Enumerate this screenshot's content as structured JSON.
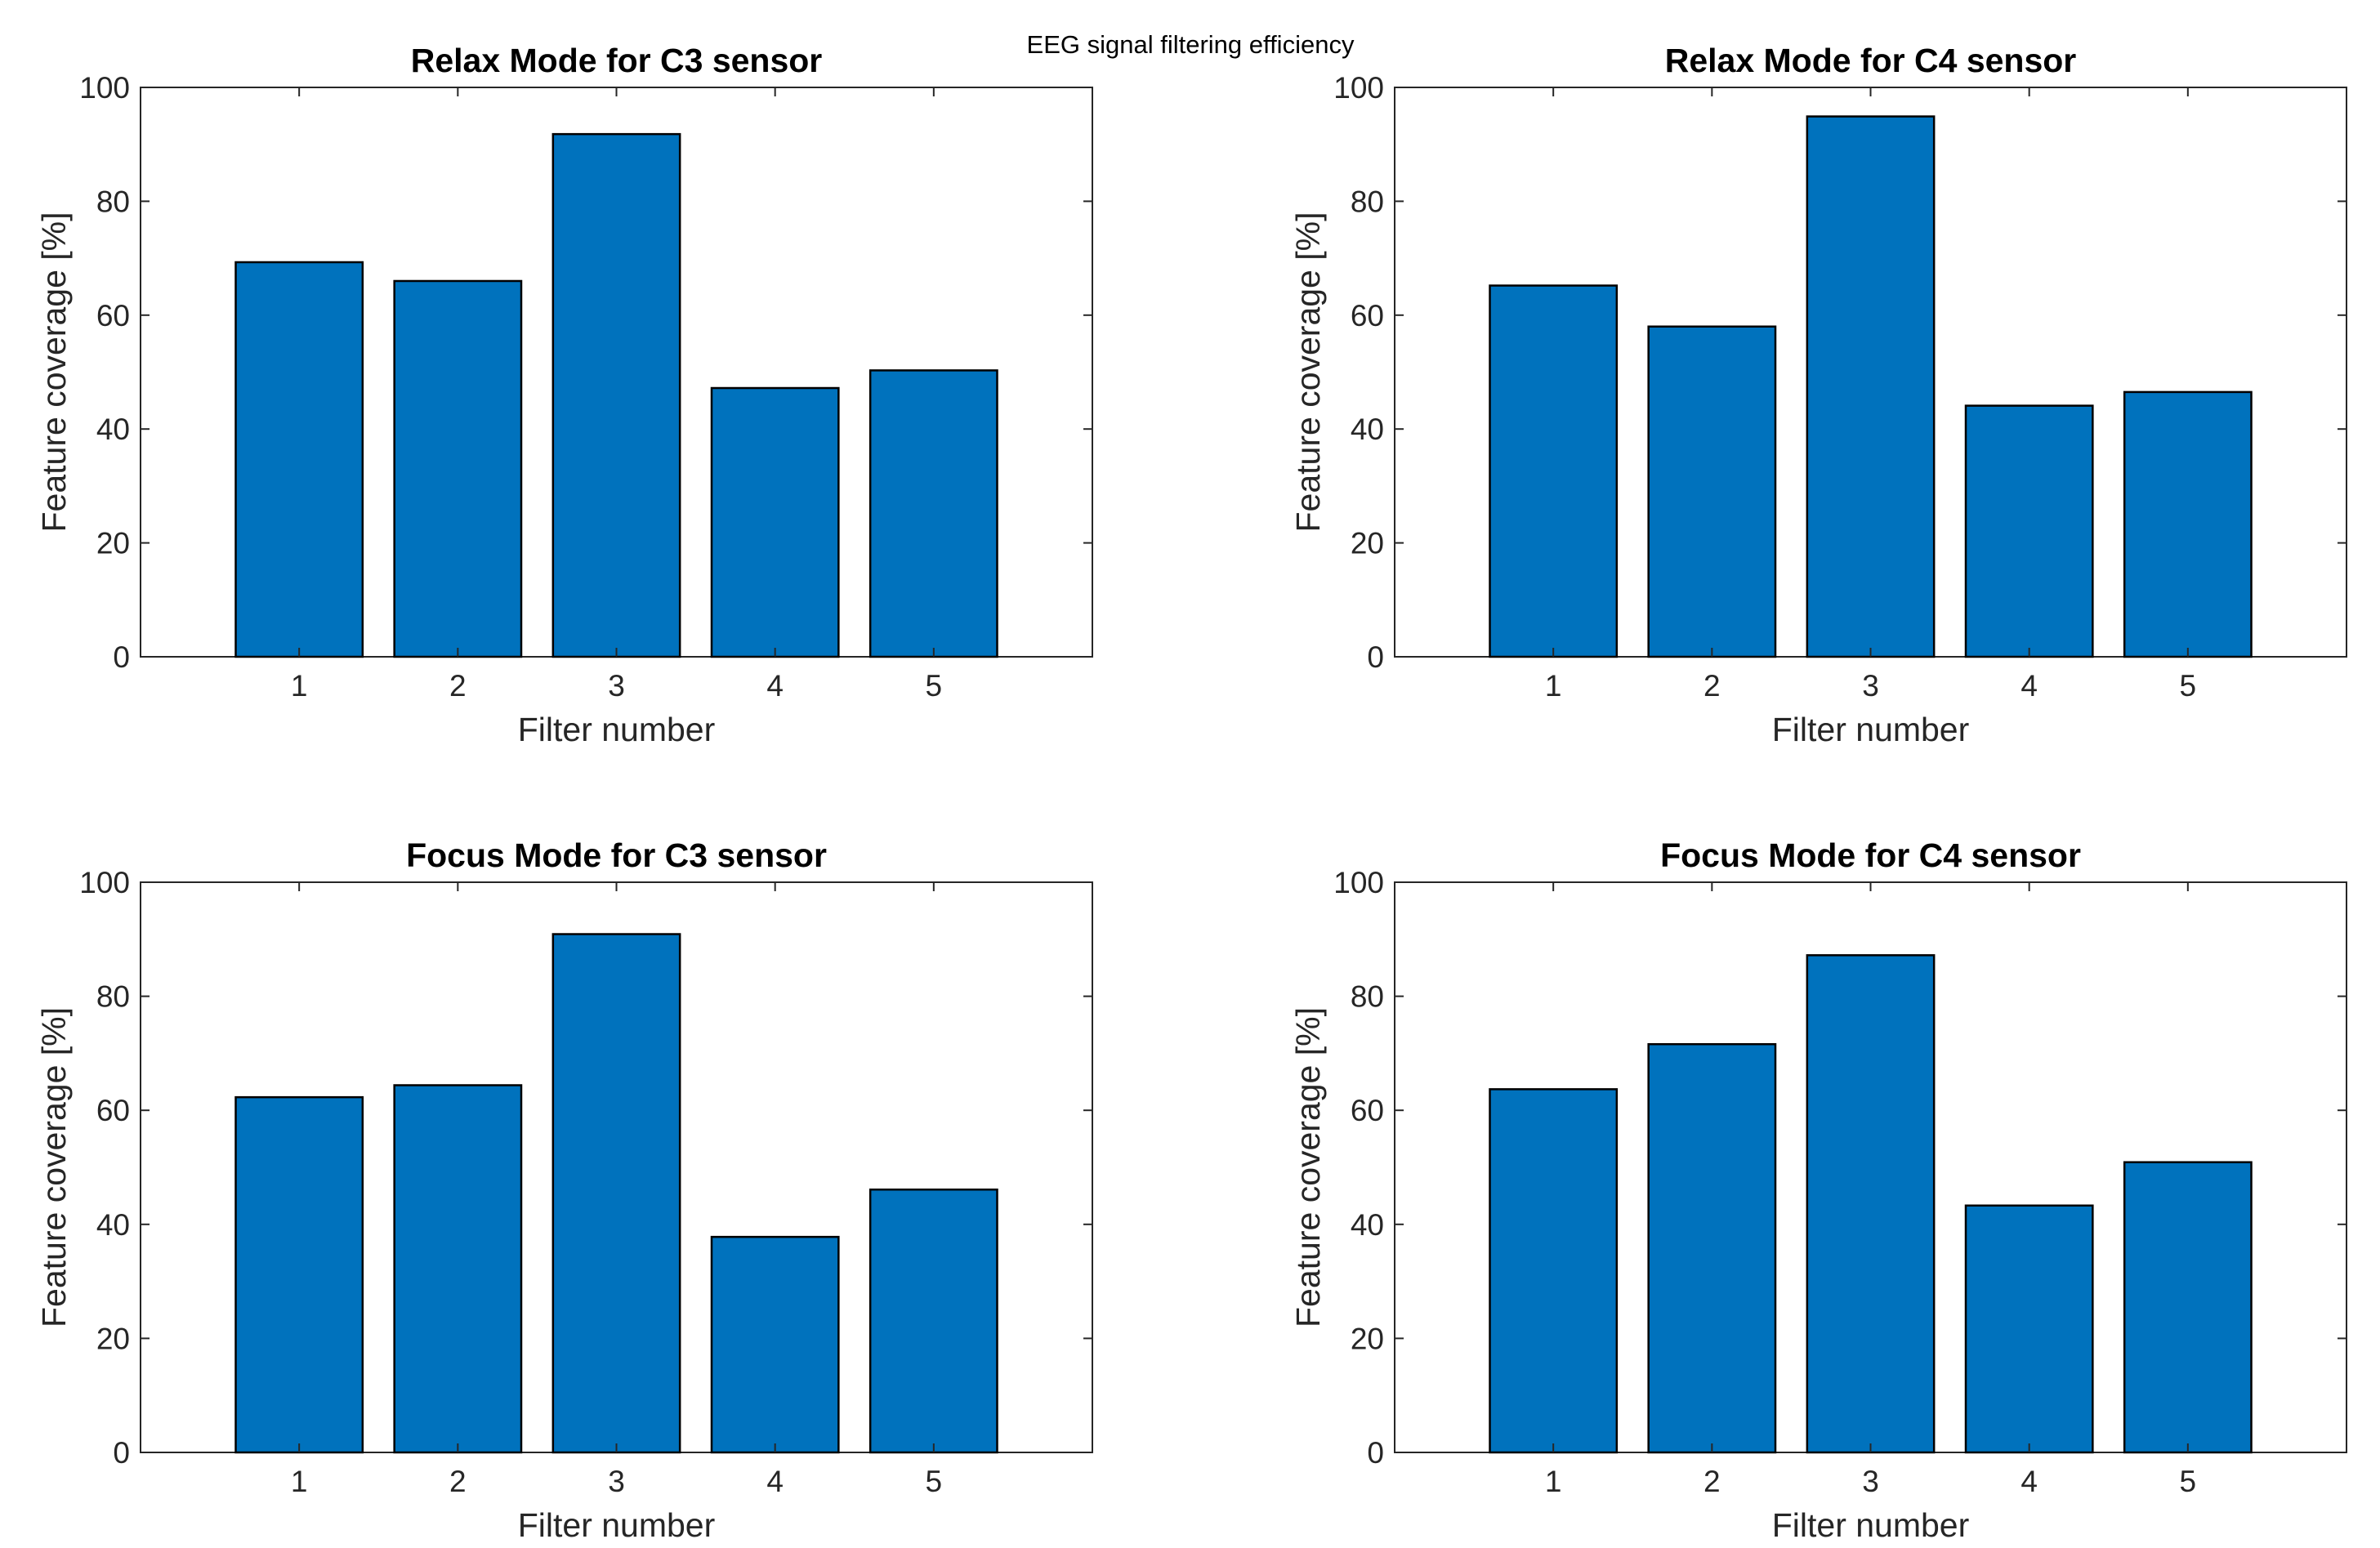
{
  "figure": {
    "suptitle": "EEG signal filtering efficiency",
    "bar_color": "#0072BD"
  },
  "chart_data": [
    {
      "type": "bar",
      "title": "Relax Mode for C3 sensor",
      "xlabel": "Filter number",
      "ylabel": "Feature coverage [%]",
      "categories": [
        "1",
        "2",
        "3",
        "4",
        "5"
      ],
      "values": [
        69.3,
        66,
        91.8,
        47.2,
        50.3
      ],
      "xlim": [
        0,
        6
      ],
      "ylim": [
        0,
        100
      ],
      "yticks": [
        0,
        20,
        40,
        60,
        80,
        100
      ],
      "grid": false
    },
    {
      "type": "bar",
      "title": "Relax Mode for C4 sensor",
      "xlabel": "Filter number",
      "ylabel": "Feature coverage [%]",
      "categories": [
        "1",
        "2",
        "3",
        "4",
        "5"
      ],
      "values": [
        65.2,
        58,
        94.9,
        44.1,
        46.5
      ],
      "xlim": [
        0,
        6
      ],
      "ylim": [
        0,
        100
      ],
      "yticks": [
        0,
        20,
        40,
        60,
        80,
        100
      ],
      "grid": false
    },
    {
      "type": "bar",
      "title": "Focus Mode for C3 sensor",
      "xlabel": "Filter number",
      "ylabel": "Feature coverage [%]",
      "categories": [
        "1",
        "2",
        "3",
        "4",
        "5"
      ],
      "values": [
        62.3,
        64.4,
        90.9,
        37.8,
        46.1
      ],
      "xlim": [
        0,
        6
      ],
      "ylim": [
        0,
        100
      ],
      "yticks": [
        0,
        20,
        40,
        60,
        80,
        100
      ],
      "grid": false
    },
    {
      "type": "bar",
      "title": "Focus Mode for C4 sensor",
      "xlabel": "Filter number",
      "ylabel": "Feature coverage [%]",
      "categories": [
        "1",
        "2",
        "3",
        "4",
        "5"
      ],
      "values": [
        63.7,
        71.6,
        87.2,
        43.3,
        50.9
      ],
      "xlim": [
        0,
        6
      ],
      "ylim": [
        0,
        100
      ],
      "yticks": [
        0,
        20,
        40,
        60,
        80,
        100
      ],
      "grid": false
    }
  ]
}
